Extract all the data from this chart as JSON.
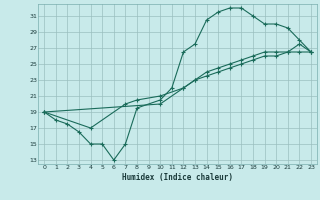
{
  "xlabel": "Humidex (Indice chaleur)",
  "bg_color": "#c8eaea",
  "grid_color": "#9bbfbf",
  "line_color": "#1a6b5a",
  "xlim": [
    -0.5,
    23.5
  ],
  "ylim": [
    12.5,
    32.5
  ],
  "xticks": [
    0,
    1,
    2,
    3,
    4,
    5,
    6,
    7,
    8,
    9,
    10,
    11,
    12,
    13,
    14,
    15,
    16,
    17,
    18,
    19,
    20,
    21,
    22,
    23
  ],
  "yticks": [
    13,
    15,
    17,
    19,
    21,
    23,
    25,
    27,
    29,
    31
  ],
  "line1_x": [
    0,
    1,
    2,
    3,
    4,
    5,
    6,
    7,
    8,
    10,
    11,
    12,
    13,
    14,
    15,
    16,
    17,
    18,
    19,
    20,
    21,
    22,
    23
  ],
  "line1_y": [
    19,
    18,
    17.5,
    16.5,
    15,
    15,
    13,
    15,
    19.5,
    20.5,
    22,
    26.5,
    27.5,
    30.5,
    31.5,
    32,
    32,
    31,
    30,
    30,
    29.5,
    28,
    26.5
  ],
  "line2_x": [
    0,
    4,
    7,
    8,
    10,
    12,
    13,
    14,
    15,
    16,
    17,
    18,
    19,
    20,
    21,
    22,
    23
  ],
  "line2_y": [
    19,
    17,
    20,
    20.5,
    21,
    22,
    23,
    23.5,
    24,
    24.5,
    25,
    25.5,
    26,
    26,
    26.5,
    26.5,
    26.5
  ],
  "line3_x": [
    0,
    10,
    12,
    13,
    14,
    15,
    16,
    17,
    18,
    19,
    20,
    21,
    22,
    23
  ],
  "line3_y": [
    19,
    20,
    22,
    23,
    24,
    24.5,
    25,
    25.5,
    26,
    26.5,
    26.5,
    26.5,
    27.5,
    26.5
  ]
}
